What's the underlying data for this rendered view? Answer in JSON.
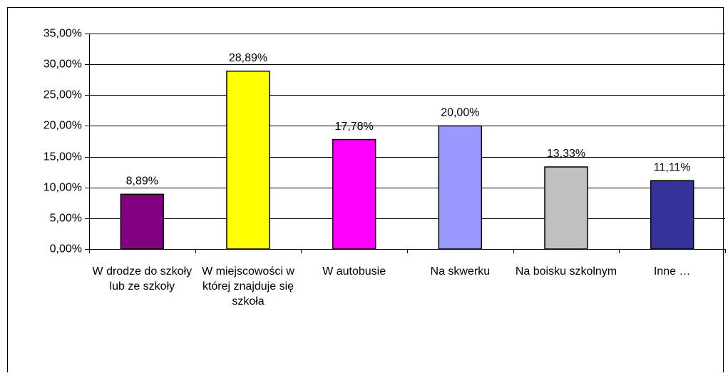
{
  "chart_data": {
    "type": "bar",
    "categories": [
      "W drodze do szkoły lub ze szkoły",
      "W miejscowości w której znajduje się szkoła",
      "W autobusie",
      "Na skwerku",
      "Na boisku szkolnym",
      "Inne …"
    ],
    "values": [
      8.89,
      28.89,
      17.78,
      20.0,
      13.33,
      11.11
    ],
    "value_labels": [
      "8,89%",
      "28,89%",
      "17,78%",
      "20,00%",
      "13,33%",
      "11,11%"
    ],
    "colors": [
      "#800080",
      "#ffff00",
      "#ff00ff",
      "#9999ff",
      "#c0c0c0",
      "#333399"
    ],
    "ylim": [
      0,
      35
    ],
    "yticks": [
      {
        "value": 0,
        "label": "0,00%"
      },
      {
        "value": 5,
        "label": "5,00%"
      },
      {
        "value": 10,
        "label": "10,00%"
      },
      {
        "value": 15,
        "label": "15,00%"
      },
      {
        "value": 20,
        "label": "20,00%"
      },
      {
        "value": 25,
        "label": "25,00%"
      },
      {
        "value": 30,
        "label": "30,00%"
      },
      {
        "value": 35,
        "label": "35,00%"
      }
    ],
    "grid": true
  }
}
